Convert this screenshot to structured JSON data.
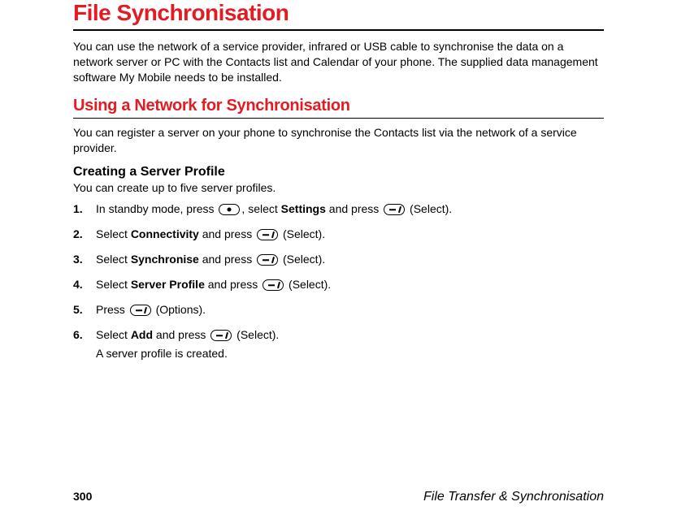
{
  "colors": {
    "accent": "#e31b23",
    "text": "#000000",
    "background": "#ffffff",
    "rule": "#000000"
  },
  "h1": "File Synchronisation",
  "intro": "You can use the network of a service provider, infrared or USB cable to synchronise the data on a network server or PC with the Contacts list and Calendar of your phone. The supplied data management software My Mobile needs to be installed.",
  "h2": "Using a Network for Synchronisation",
  "para2": "You can register a server on your phone to synchronise the Contacts list via the network of a service provider.",
  "h3": "Creating a Server Profile",
  "sub": "You can create up to five server profiles.",
  "steps": {
    "s1a": "In standby mode, press ",
    "s1b": ", select ",
    "s1c": " and press ",
    "s1d": " (Select).",
    "s1_bold": "Settings",
    "s2a": "Select ",
    "s2b": " and press ",
    "s2c": " (Select).",
    "s2_bold": "Connectivity",
    "s3a": "Select ",
    "s3b": " and press ",
    "s3c": " (Select).",
    "s3_bold": "Synchronise",
    "s4a": "Select ",
    "s4b": " and press ",
    "s4c": " (Select).",
    "s4_bold": "Server Profile",
    "s5a": "Press ",
    "s5b": " (Options).",
    "s6a": "Select ",
    "s6b": " and press ",
    "s6c": " (Select).",
    "s6_bold": "Add",
    "note": "A server profile is created."
  },
  "footer": {
    "page": "300",
    "section": "File Transfer & Synchronisation"
  }
}
